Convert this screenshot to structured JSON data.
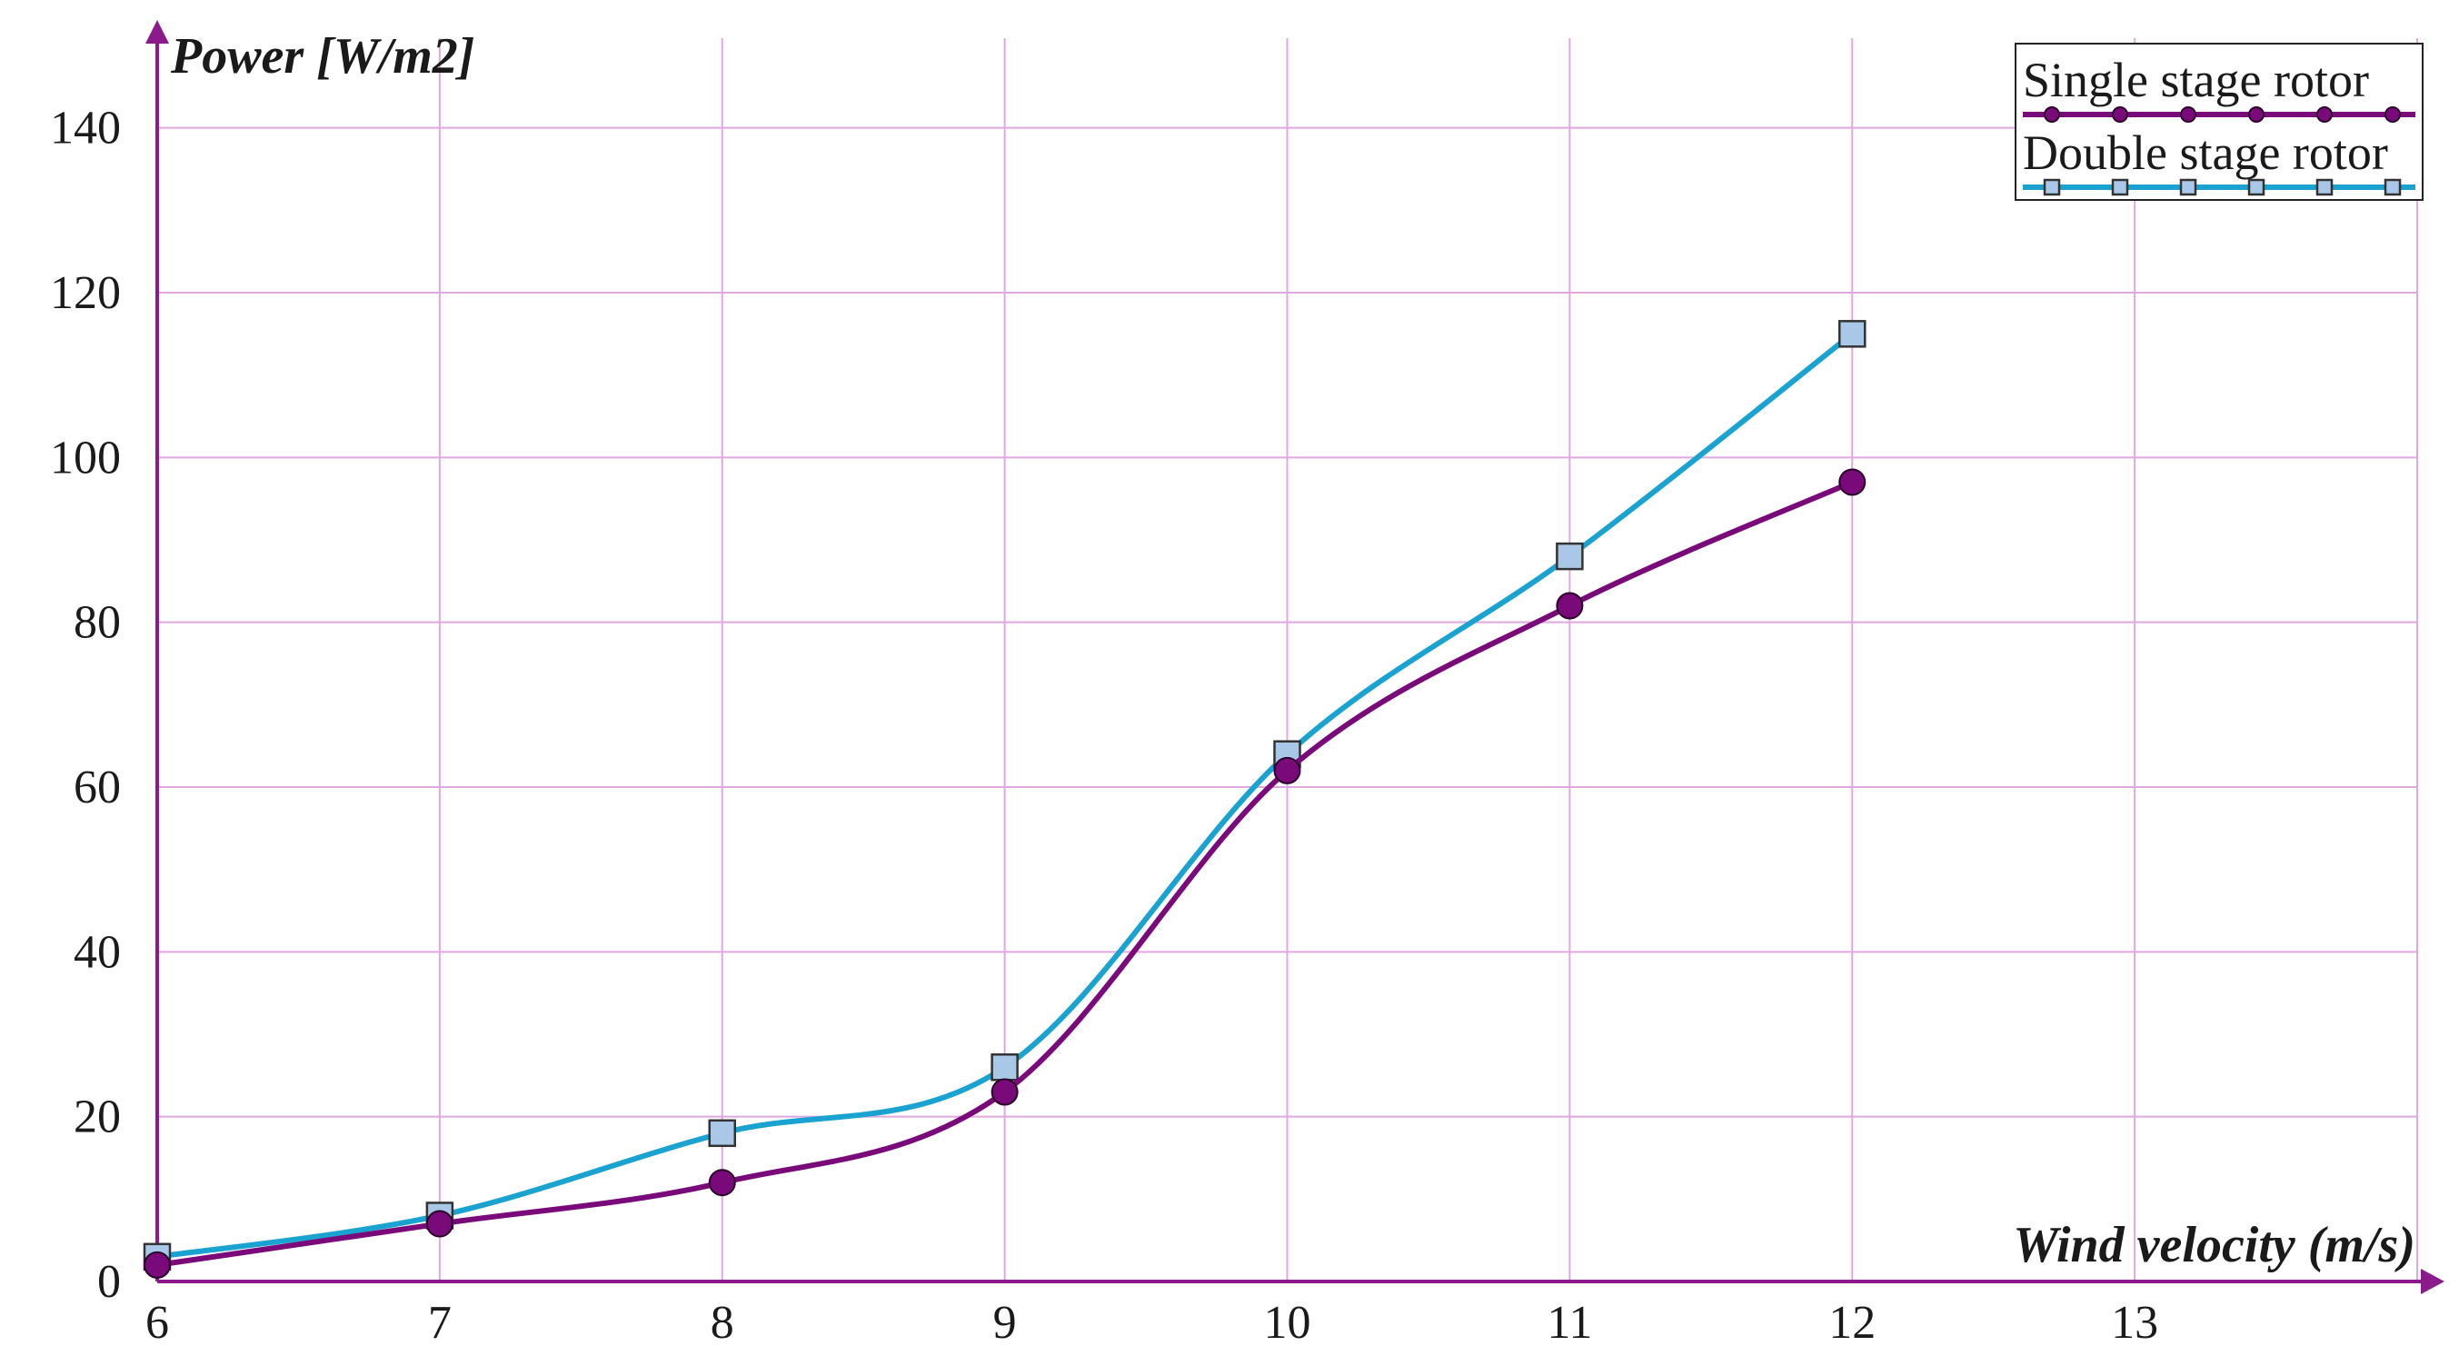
{
  "chart_data": {
    "type": "line",
    "xlabel": "Wind velocity (m/s)",
    "ylabel": "Power [W/m2]",
    "xlim": [
      6,
      14
    ],
    "ylim": [
      0,
      150
    ],
    "x_ticks": [
      "6",
      "7",
      "8",
      "9",
      "10",
      "11",
      "12",
      "13"
    ],
    "y_ticks": [
      "0",
      "20",
      "40",
      "60",
      "80",
      "100",
      "120",
      "140"
    ],
    "grid": true,
    "legend_position": "top-right",
    "x": [
      6,
      7,
      8,
      9,
      10,
      11,
      12
    ],
    "series": [
      {
        "name": "Single stage rotor",
        "values": [
          2,
          7,
          12,
          23,
          62,
          82,
          97
        ],
        "color": "#7a0a7a",
        "marker": "circle"
      },
      {
        "name": "Double stage rotor",
        "values": [
          3,
          8,
          18,
          26,
          64,
          88,
          115
        ],
        "color": "#1aa3d1",
        "marker": "square"
      }
    ],
    "colors": {
      "axis": "#8b1a8b",
      "grid": "#e0a8e0",
      "single_marker_fill": "#7a0a7a",
      "double_marker_fill": "#a9c8e8"
    }
  }
}
